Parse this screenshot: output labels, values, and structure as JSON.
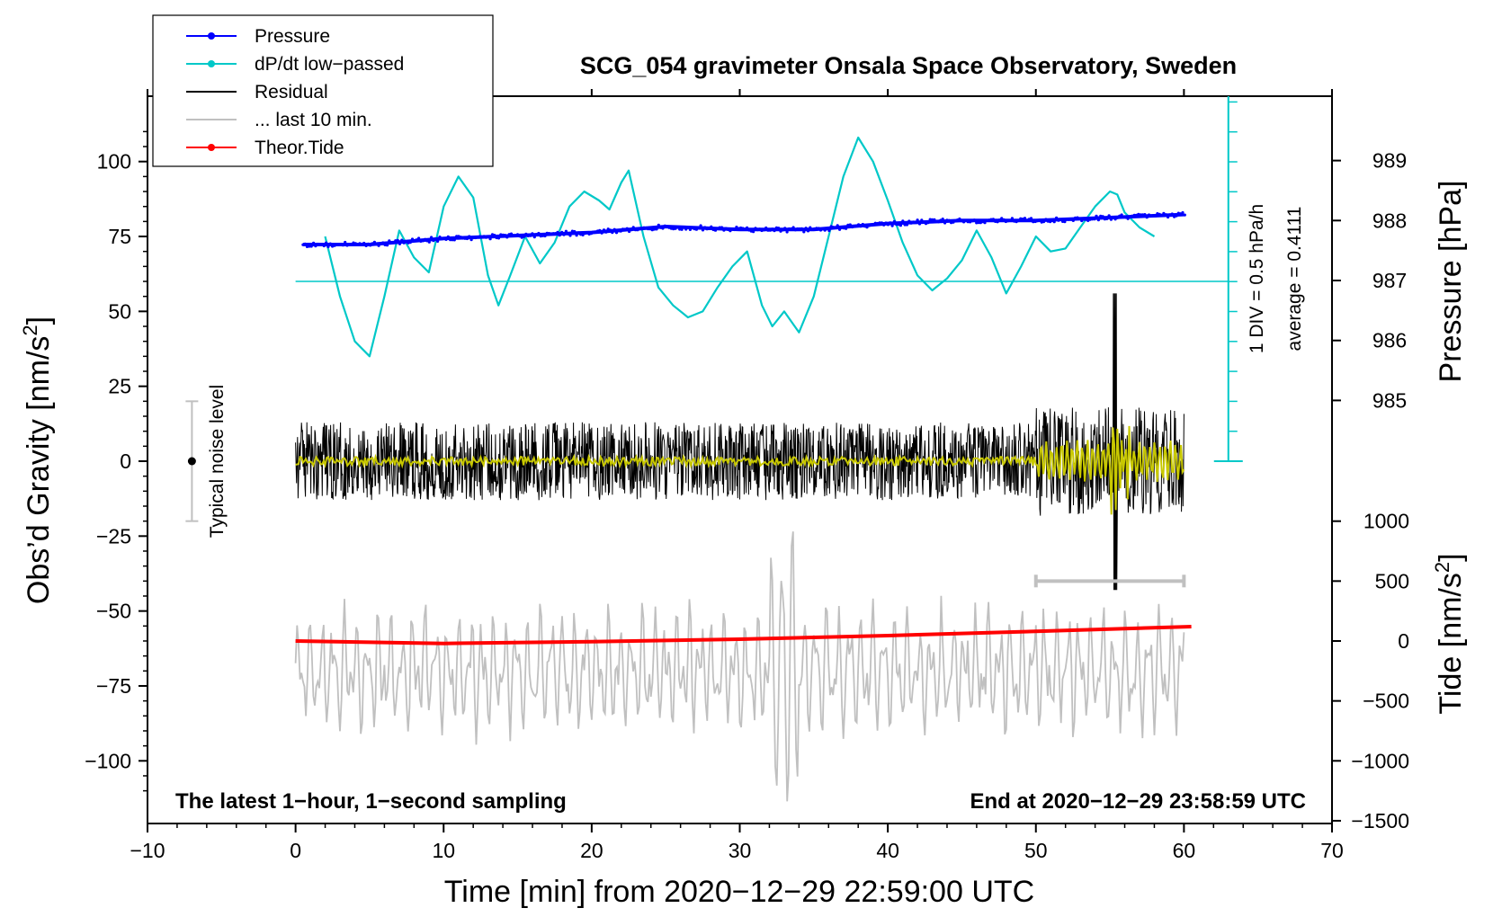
{
  "chart_data": {
    "type": "line",
    "title": "SCG_054 gravimeter Onsala Space Observatory, Sweden",
    "xlabel": "Time [min] from 2020−12−29 22:59:00 UTC",
    "ylabel_left": "Obs’d Gravity [nm/s",
    "ylabel_left_sup": "2",
    "ylabel_left_close": "]",
    "ylabel_right_pressure": "Pressure [hPa]",
    "ylabel_right_tide": "Tide [nm/s",
    "ylabel_right_tide_sup": "2",
    "ylabel_right_tide_close": "]",
    "xlim": [
      -10,
      70
    ],
    "ylim_gravity": [
      -120,
      120
    ],
    "x_ticks": [
      "−10",
      "0",
      "10",
      "20",
      "30",
      "40",
      "50",
      "60",
      "70"
    ],
    "x_tick_values": [
      -10,
      0,
      10,
      20,
      30,
      40,
      50,
      60,
      70
    ],
    "y_left_ticks": [
      "100",
      "75",
      "50",
      "25",
      "0",
      "−25",
      "−50",
      "−75",
      "−100"
    ],
    "y_left_tick_values": [
      100,
      75,
      50,
      25,
      0,
      -25,
      -50,
      -75,
      -100
    ],
    "y_pressure_ticks": [
      "989",
      "988",
      "987",
      "986",
      "985"
    ],
    "y_pressure_tick_values": [
      989,
      988,
      987,
      986,
      985
    ],
    "y_tide_ticks": [
      "1000",
      "500",
      "0",
      "−500",
      "−1000",
      "−1500"
    ],
    "y_tide_tick_values": [
      1000,
      500,
      0,
      -500,
      -1000,
      -1500
    ],
    "legend": {
      "position": "top-left",
      "entries": [
        {
          "label": "Pressure",
          "color": "#0000ff",
          "marker": true
        },
        {
          "label": "dP/dt low−passed",
          "color": "#00c8c8",
          "marker": true
        },
        {
          "label": "Residual",
          "color": "#000000",
          "marker": false
        },
        {
          "label": "... last 10 min.",
          "color": "#c0c0c0",
          "marker": false
        },
        {
          "label": "Theor.Tide",
          "color": "#ff0000",
          "marker": true
        }
      ]
    },
    "annotations": {
      "noise_label": "Typical noise level",
      "dpdt_div": "1 DIV = 0.5 hPa/h",
      "dpdt_average": "average = 0.4111",
      "bottom_left": "The latest 1−hour, 1−second sampling",
      "bottom_right": "End at 2020−12−29 23:58:59 UTC"
    },
    "series": {
      "pressure_hpa": {
        "color": "#0000ff",
        "x": [
          0.5,
          5,
          10,
          15,
          20,
          25,
          30,
          35,
          40,
          45,
          50,
          55,
          60
        ],
        "y": [
          987.6,
          987.6,
          987.7,
          987.75,
          987.8,
          987.9,
          987.85,
          987.85,
          987.95,
          988.0,
          988.0,
          988.05,
          988.1
        ]
      },
      "dpdt_lowpassed_gravity_units": {
        "color": "#00c8c8",
        "x": [
          2,
          3,
          4,
          5,
          6,
          7,
          8,
          9,
          10,
          11,
          12,
          13,
          13.7,
          14.5,
          15.5,
          16.5,
          17.5,
          18.5,
          19.5,
          20.5,
          21.2,
          22,
          22.5,
          23.5,
          24.5,
          25.5,
          26.5,
          27.5,
          28.5,
          29.5,
          30.5,
          31.5,
          32.2,
          33,
          34,
          35,
          36,
          37,
          38,
          39,
          40,
          41,
          42,
          43,
          44,
          45,
          46,
          47,
          48,
          49,
          50,
          51,
          52,
          53,
          54,
          55,
          55.5,
          56,
          57,
          58
        ],
        "y": [
          75,
          55,
          40,
          35,
          55,
          77,
          68,
          63,
          85,
          95,
          88,
          62,
          52,
          62,
          75,
          66,
          73,
          85,
          90,
          87,
          84,
          93,
          97,
          75,
          58,
          52,
          48,
          50,
          58,
          65,
          70,
          52,
          45,
          50,
          43,
          55,
          75,
          95,
          108,
          100,
          87,
          73,
          62,
          57,
          61,
          67,
          77,
          68,
          56,
          65,
          75,
          70,
          71,
          78,
          85,
          90,
          89,
          83,
          78,
          75
        ]
      },
      "dpdt_reference_line": {
        "color": "#00c8c8",
        "y": 60,
        "x_range": [
          0,
          63
        ]
      },
      "residual": {
        "color": "#000000",
        "x_range": [
          0,
          60
        ],
        "center": 0,
        "typical_amplitude": 13,
        "max": 56,
        "min": -43
      },
      "residual_smoothed": {
        "color": "#c8c800",
        "x_range": [
          0,
          60
        ],
        "center": 0
      },
      "last_10_min": {
        "color": "#c0c0c0",
        "x_range": [
          0,
          60
        ],
        "center": -70,
        "min": -118,
        "max": -17
      },
      "theoretical_tide_nm_s2": {
        "color": "#ff0000",
        "x": [
          0,
          10,
          20,
          30,
          40,
          50,
          60.5
        ],
        "y": [
          0,
          -20,
          -5,
          15,
          45,
          80,
          120
        ]
      },
      "last_10_min_bracket": {
        "color": "#c0c0c0",
        "x_range": [
          50,
          60
        ],
        "y": -40
      },
      "noise_bar": {
        "x": -7,
        "center": 0,
        "half_range": 20
      }
    }
  }
}
